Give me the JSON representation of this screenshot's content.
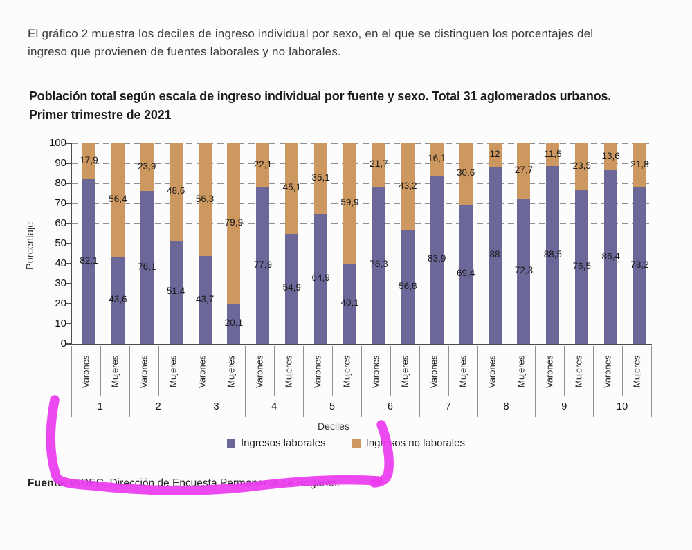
{
  "document": {
    "intro_lines": [
      "El gráfico 2 muestra los deciles de ingreso individual por sexo, en el que se distinguen los porcentajes del",
      "ingreso que provienen de fuentes laborales y no laborales."
    ],
    "chart_title_lines": [
      "Población total según escala de ingreso individual por fuente y sexo. Total 31 aglomerados urbanos.",
      "Primer trimestre de 2021"
    ],
    "fuente_label": "Fuente:",
    "fuente_text": " INDEC, Dirección de Encuesta Permanente de Hogares."
  },
  "chart_data": {
    "type": "bar",
    "stacked": true,
    "ylabel": "Porcentaje",
    "xlabel": "Deciles",
    "ylim": [
      0,
      100
    ],
    "ytick_step": 10,
    "grid": "dashed horizontal",
    "legend_position": "bottom",
    "decimal_separator": ",",
    "bar_group_labels": [
      "Varones",
      "Mujeres"
    ],
    "categories": [
      "1",
      "2",
      "3",
      "4",
      "5",
      "6",
      "7",
      "8",
      "9",
      "10"
    ],
    "series": [
      {
        "name": "Ingresos laborales",
        "color": "#6b6899",
        "varones": [
          82.1,
          76.1,
          43.7,
          77.9,
          64.9,
          78.3,
          83.9,
          88,
          88.5,
          86.4
        ],
        "mujeres": [
          43.6,
          51.4,
          20.1,
          54.9,
          40.1,
          56.8,
          69.4,
          72.3,
          76.5,
          78.2
        ]
      },
      {
        "name": "Ingresos no laborales",
        "color": "#cd9860",
        "varones": [
          17.9,
          23.9,
          56.3,
          22.1,
          35.1,
          21.7,
          16.1,
          12,
          11.5,
          13.6
        ],
        "mujeres": [
          56.4,
          48.6,
          79.9,
          45.1,
          59.9,
          43.2,
          30.6,
          27.7,
          23.5,
          21.8
        ]
      }
    ]
  },
  "annotations": {
    "marker_color": "#ec3bef"
  }
}
